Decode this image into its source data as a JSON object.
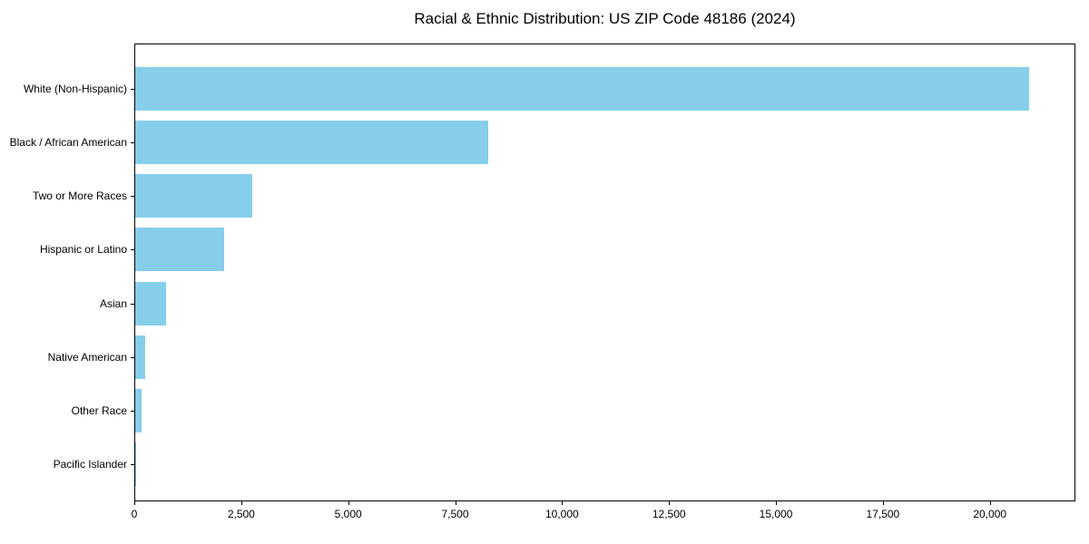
{
  "figure": {
    "background": "#ffffff"
  },
  "chart_data": {
    "type": "bar",
    "orientation": "horizontal",
    "title": "Racial & Ethnic Distribution: US ZIP Code 48186 (2024)",
    "categories": [
      "White (Non-Hispanic)",
      "Black / African American",
      "Two or More Races",
      "Hispanic or Latino",
      "Asian",
      "Native American",
      "Other Race",
      "Pacific Islander"
    ],
    "values": [
      20930,
      8260,
      2750,
      2080,
      720,
      230,
      150,
      15
    ],
    "xlabel": "",
    "ylabel": "",
    "xlim": [
      0,
      22000
    ],
    "x_ticks": [
      0,
      2500,
      5000,
      7500,
      10000,
      12500,
      15000,
      17500,
      20000
    ],
    "x_tick_labels": [
      "0",
      "2,500",
      "5,000",
      "7,500",
      "10,000",
      "12,500",
      "15,000",
      "17,500",
      "20,000"
    ],
    "bar_color": "#87CEEB",
    "axis_color": "#000000",
    "grid": false,
    "legend": null
  }
}
